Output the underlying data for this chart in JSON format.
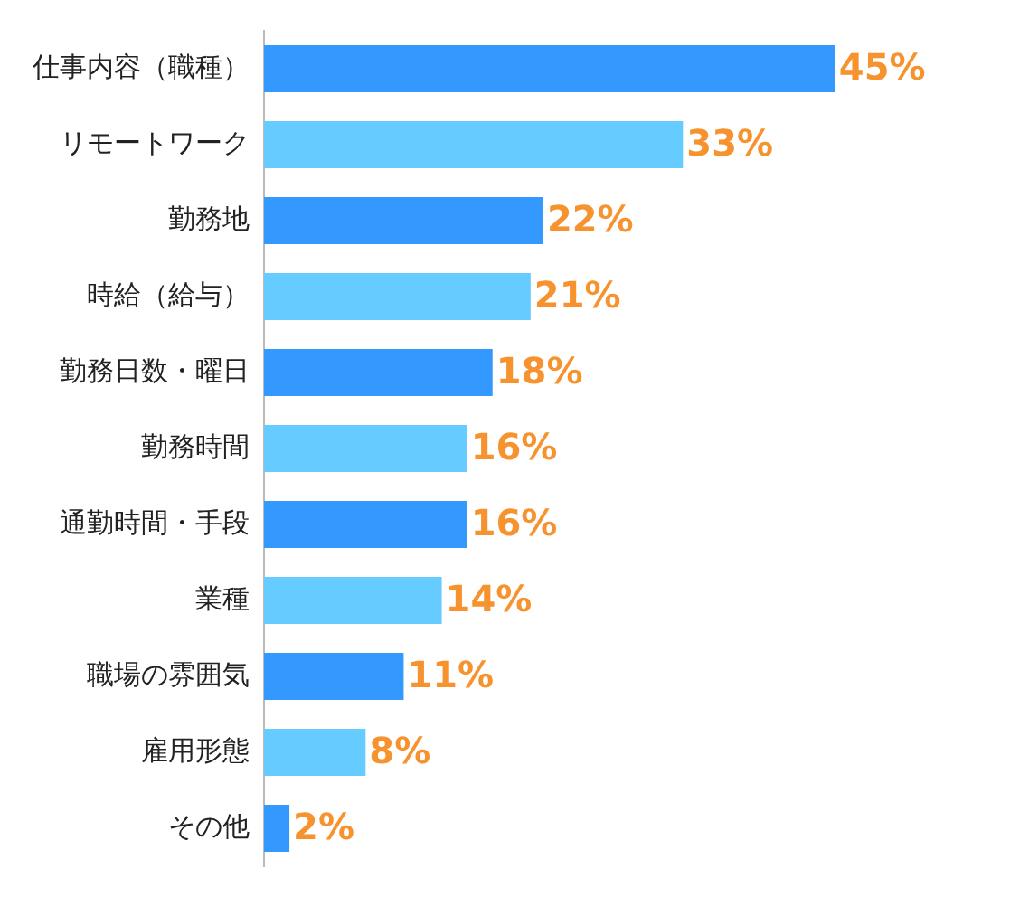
{
  "chart_data": {
    "type": "bar",
    "orientation": "horizontal",
    "categories": [
      "仕事内容（職種）",
      "リモートワーク",
      "勤務地",
      "時給（給与）",
      "勤務日数・曜日",
      "勤務時間",
      "通勤時間・手段",
      "業種",
      "職場の雰囲気",
      "雇用形態",
      "その他"
    ],
    "values": [
      45,
      33,
      22,
      21,
      18,
      16,
      16,
      14,
      11,
      8,
      2
    ],
    "value_labels": [
      "45%",
      "33%",
      "22%",
      "21%",
      "18%",
      "16%",
      "16%",
      "14%",
      "11%",
      "8%",
      "2%"
    ],
    "colors": [
      "#3399ff",
      "#66ccff",
      "#3399ff",
      "#66ccff",
      "#3399ff",
      "#66ccff",
      "#3399ff",
      "#66ccff",
      "#3399ff",
      "#66ccff",
      "#3399ff"
    ],
    "tick_labels": "y",
    "grid": false,
    "legend": false
  }
}
